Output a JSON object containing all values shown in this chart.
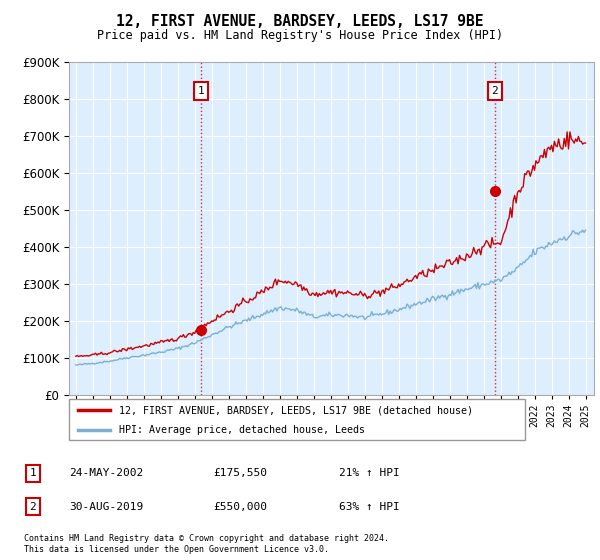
{
  "title": "12, FIRST AVENUE, BARDSEY, LEEDS, LS17 9BE",
  "subtitle": "Price paid vs. HM Land Registry's House Price Index (HPI)",
  "legend_line1": "12, FIRST AVENUE, BARDSEY, LEEDS, LS17 9BE (detached house)",
  "legend_line2": "HPI: Average price, detached house, Leeds",
  "footnote1": "Contains HM Land Registry data © Crown copyright and database right 2024.",
  "footnote2": "This data is licensed under the Open Government Licence v3.0.",
  "sale1_label": "1",
  "sale1_date": "24-MAY-2002",
  "sale1_price": "£175,550",
  "sale1_hpi": "21% ↑ HPI",
  "sale2_label": "2",
  "sale2_date": "30-AUG-2019",
  "sale2_price": "£550,000",
  "sale2_hpi": "63% ↑ HPI",
  "ylim": [
    0,
    900000
  ],
  "yticks": [
    0,
    100000,
    200000,
    300000,
    400000,
    500000,
    600000,
    700000,
    800000,
    900000
  ],
  "price_line_color": "#cc0000",
  "hpi_line_color": "#7bafd4",
  "sale_marker_color": "#cc0000",
  "annotation_box_color": "#cc0000",
  "plot_bg_color": "#ddeeff",
  "background_color": "#ffffff",
  "grid_color": "#ffffff",
  "sale1_year": 2002.37,
  "sale1_value": 175550,
  "sale2_year": 2019.67,
  "sale2_value": 550000
}
